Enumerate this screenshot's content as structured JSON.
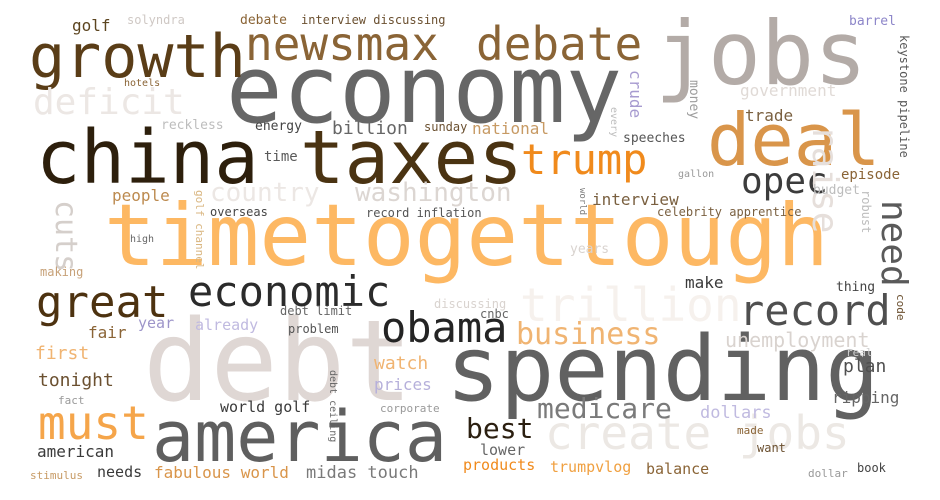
{
  "words": [
    {
      "text": "timetogettough",
      "color": "#fdb863",
      "rotate": false
    },
    {
      "text": "economy",
      "color": "#666666",
      "rotate": false
    },
    {
      "text": "debt",
      "color": "#dfd7d4",
      "rotate": false
    },
    {
      "text": "spending",
      "color": "#616161",
      "rotate": false
    },
    {
      "text": "china",
      "color": "#2d1f0c",
      "rotate": false
    },
    {
      "text": "taxes",
      "color": "#4a3312",
      "rotate": false
    },
    {
      "text": "america",
      "color": "#5f5f5f",
      "rotate": false
    },
    {
      "text": "jobs",
      "color": "#b3aba7",
      "rotate": false
    },
    {
      "text": "deal",
      "color": "#d9954a",
      "rotate": false
    },
    {
      "text": "growth",
      "color": "#5a3d17",
      "rotate": false
    },
    {
      "text": "newsmax",
      "color": "#8a6436",
      "rotate": false
    },
    {
      "text": "debate",
      "color": "#8a6436",
      "rotate": false
    },
    {
      "text": "trump",
      "color": "#f08a1c",
      "rotate": false
    },
    {
      "text": "create jobs",
      "color": "#ece8e4",
      "rotate": false
    },
    {
      "text": "trillion",
      "color": "#f6f1ed",
      "rotate": false
    },
    {
      "text": "economic",
      "color": "#2b2b2b",
      "rotate": false
    },
    {
      "text": "great",
      "color": "#4d3210",
      "rotate": false
    },
    {
      "text": "obama",
      "color": "#242424",
      "rotate": false
    },
    {
      "text": "record",
      "color": "#4f4f4f",
      "rotate": false
    },
    {
      "text": "opec",
      "color": "#3c3c3c",
      "rotate": false
    },
    {
      "text": "must",
      "color": "#f5a54a",
      "rotate": false
    },
    {
      "text": "deficit",
      "color": "#ece7e4",
      "rotate": false
    },
    {
      "text": "country",
      "color": "#ece7e4",
      "rotate": false
    },
    {
      "text": "washington",
      "color": "#dcd6d2",
      "rotate": false
    },
    {
      "text": "business",
      "color": "#f0b472",
      "rotate": false
    },
    {
      "text": "medicare",
      "color": "#7a7a7a",
      "rotate": false
    },
    {
      "text": "raise",
      "color": "#e6dfdb",
      "rotate": true
    },
    {
      "text": "need",
      "color": "#5a5a5a",
      "rotate": true
    },
    {
      "text": "cuts",
      "color": "#d5cfcb",
      "rotate": true
    },
    {
      "text": "best",
      "color": "#2b1f10",
      "rotate": false
    },
    {
      "text": "unemployment",
      "color": "#d9d3cf",
      "rotate": false
    },
    {
      "text": "billion",
      "color": "#666666",
      "rotate": false
    },
    {
      "text": "golf",
      "color": "#5c4520",
      "rotate": false
    },
    {
      "text": "solyndra",
      "color": "#cfc8c4",
      "rotate": false
    },
    {
      "text": "debate",
      "color": "#8a6436",
      "rotate": false
    },
    {
      "text": "interview discussing",
      "color": "#6b5030",
      "rotate": false
    },
    {
      "text": "barrel",
      "color": "#8d86c9",
      "rotate": false
    },
    {
      "text": "keystone pipeline",
      "color": "#585858",
      "rotate": true
    },
    {
      "text": "government",
      "color": "#e0dad6",
      "rotate": false
    },
    {
      "text": "trade",
      "color": "#7a6040",
      "rotate": false
    },
    {
      "text": "crude",
      "color": "#a79bd0",
      "rotate": true
    },
    {
      "text": "money",
      "color": "#9d9d9d",
      "rotate": true
    },
    {
      "text": "national",
      "color": "#c79a64",
      "rotate": false
    },
    {
      "text": "sunday",
      "color": "#6b5030",
      "rotate": false
    },
    {
      "text": "energy",
      "color": "#444444",
      "rotate": false
    },
    {
      "text": "reckless",
      "color": "#bdbdbd",
      "rotate": false
    },
    {
      "text": "hotels",
      "color": "#8a6436",
      "rotate": false
    },
    {
      "text": "time",
      "color": "#5a5a5a",
      "rotate": false
    },
    {
      "text": "speeches",
      "color": "#555555",
      "rotate": false
    },
    {
      "text": "every",
      "color": "#bdbdbd",
      "rotate": true
    },
    {
      "text": "gallon",
      "color": "#999999",
      "rotate": false
    },
    {
      "text": "episode",
      "color": "#8a6436",
      "rotate": false
    },
    {
      "text": "budget",
      "color": "#bdbdbd",
      "rotate": false
    },
    {
      "text": "people",
      "color": "#bc8a4f",
      "rotate": false
    },
    {
      "text": "golf channel",
      "color": "#d9b680",
      "rotate": true
    },
    {
      "text": "overseas",
      "color": "#444444",
      "rotate": false
    },
    {
      "text": "record inflation",
      "color": "#555555",
      "rotate": false
    },
    {
      "text": "interview",
      "color": "#7a6040",
      "rotate": false
    },
    {
      "text": "celebrity apprentice",
      "color": "#7a6040",
      "rotate": false
    },
    {
      "text": "robust",
      "color": "#bdbdbd",
      "rotate": true
    },
    {
      "text": "world",
      "color": "#7a7a7a",
      "rotate": true
    },
    {
      "text": "high",
      "color": "#666666",
      "rotate": false
    },
    {
      "text": "years",
      "color": "#d9d3cf",
      "rotate": false
    },
    {
      "text": "making",
      "color": "#c7a178",
      "rotate": false
    },
    {
      "text": "make",
      "color": "#3a3a3a",
      "rotate": false
    },
    {
      "text": "thing",
      "color": "#444444",
      "rotate": false
    },
    {
      "text": "code",
      "color": "#6b5030",
      "rotate": true
    },
    {
      "text": "cnbc",
      "color": "#666666",
      "rotate": false
    },
    {
      "text": "discussing",
      "color": "#d9d3cf",
      "rotate": false
    },
    {
      "text": "debt limit",
      "color": "#666666",
      "rotate": false
    },
    {
      "text": "problem",
      "color": "#555555",
      "rotate": false
    },
    {
      "text": "year",
      "color": "#9d95c9",
      "rotate": false
    },
    {
      "text": "already",
      "color": "#c0bae0",
      "rotate": false
    },
    {
      "text": "fair",
      "color": "#8a6436",
      "rotate": false
    },
    {
      "text": "first",
      "color": "#f0b472",
      "rotate": false
    },
    {
      "text": "tonight",
      "color": "#6b5030",
      "rotate": false
    },
    {
      "text": "watch",
      "color": "#f0b472",
      "rotate": false
    },
    {
      "text": "prices",
      "color": "#b6b0db",
      "rotate": false
    },
    {
      "text": "plan",
      "color": "#4f4f4f",
      "rotate": false
    },
    {
      "text": "real",
      "color": "#cfcfcf",
      "rotate": false
    },
    {
      "text": "ripping",
      "color": "#666666",
      "rotate": false
    },
    {
      "text": "fact",
      "color": "#999999",
      "rotate": false
    },
    {
      "text": "debt ceiling",
      "color": "#666666",
      "rotate": true
    },
    {
      "text": "corporate",
      "color": "#999999",
      "rotate": false
    },
    {
      "text": "world golf",
      "color": "#3a3a3a",
      "rotate": false
    },
    {
      "text": "dollars",
      "color": "#c0bae0",
      "rotate": false
    },
    {
      "text": "made",
      "color": "#8a6436",
      "rotate": false
    },
    {
      "text": "want",
      "color": "#6b5030",
      "rotate": false
    },
    {
      "text": "american",
      "color": "#3a3a3a",
      "rotate": false
    },
    {
      "text": "lower",
      "color": "#666666",
      "rotate": false
    },
    {
      "text": "stimulus",
      "color": "#c79a64",
      "rotate": false
    },
    {
      "text": "needs",
      "color": "#3a3a3a",
      "rotate": false
    },
    {
      "text": "fabulous world",
      "color": "#d9954a",
      "rotate": false
    },
    {
      "text": "midas touch",
      "color": "#7a7a7a",
      "rotate": false
    },
    {
      "text": "products",
      "color": "#f08a1c",
      "rotate": false
    },
    {
      "text": "trumpvlog",
      "color": "#f0a040",
      "rotate": false
    },
    {
      "text": "balance",
      "color": "#8a6436",
      "rotate": false
    },
    {
      "text": "dollar",
      "color": "#999999",
      "rotate": false
    },
    {
      "text": "book",
      "color": "#444444",
      "rotate": false
    }
  ]
}
